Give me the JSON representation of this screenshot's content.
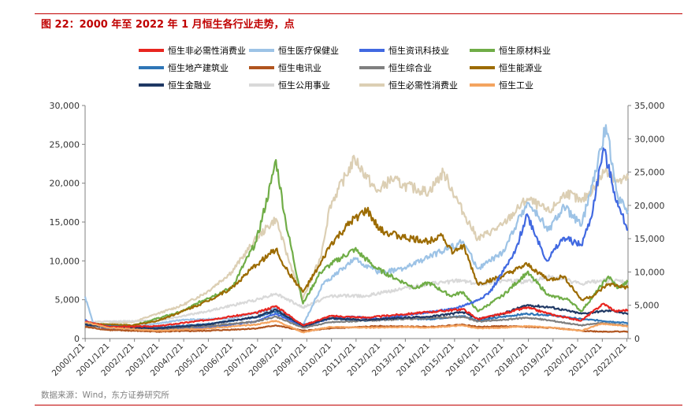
{
  "figure": {
    "title": "图 22：2000 年至 2022 年 1 月恒生各行业走势，点",
    "source": "数据来源：Wind，东方证券研究所",
    "accent_color": "#c00000"
  },
  "chart_data": {
    "type": "line",
    "title": "",
    "xlabel": "",
    "ylabel": "",
    "x_ticks": [
      "2000/1/21",
      "2001/1/21",
      "2002/1/21",
      "2003/1/21",
      "2004/1/21",
      "2005/1/21",
      "2006/1/21",
      "2007/1/21",
      "2008/1/21",
      "2009/1/21",
      "2010/1/21",
      "2011/1/21",
      "2012/1/21",
      "2013/1/21",
      "2014/1/21",
      "2015/1/21",
      "2016/1/21",
      "2017/1/21",
      "2018/1/21",
      "2019/1/21",
      "2020/1/21",
      "2021/1/21",
      "2022/1/21"
    ],
    "x_range": [
      2000.05,
      2022.1
    ],
    "y_left": {
      "range": [
        0,
        30000
      ],
      "ticks": [
        "0",
        "5,000",
        "10,000",
        "15,000",
        "20,000",
        "25,000",
        "30,000"
      ]
    },
    "y_right": {
      "range": [
        0,
        35000
      ],
      "ticks": [
        "0",
        "5,000",
        "10,000",
        "15,000",
        "20,000",
        "25,000",
        "30,000",
        "35,000"
      ]
    },
    "legend_position": "top",
    "grid": false,
    "series": [
      {
        "name": "恒生非必需性消费业",
        "color": "#e8251f",
        "axis": "left",
        "points": [
          [
            2000.05,
            2200
          ],
          [
            2001,
            1500
          ],
          [
            2003,
            1600
          ],
          [
            2005,
            2400
          ],
          [
            2007,
            3300
          ],
          [
            2007.8,
            4200
          ],
          [
            2008.9,
            1700
          ],
          [
            2010,
            2900
          ],
          [
            2011.5,
            2700
          ],
          [
            2012.5,
            3000
          ],
          [
            2014,
            3400
          ],
          [
            2015.4,
            3800
          ],
          [
            2016,
            2500
          ],
          [
            2017,
            3200
          ],
          [
            2018,
            4000
          ],
          [
            2019,
            3100
          ],
          [
            2020.2,
            2300
          ],
          [
            2021.1,
            4500
          ],
          [
            2021.6,
            3500
          ],
          [
            2022.1,
            3700
          ]
        ]
      },
      {
        "name": "恒生医疗保健业",
        "color": "#9dc3e6",
        "axis": "left",
        "points": [
          [
            2000.05,
            5400
          ],
          [
            2000.4,
            1800
          ],
          [
            2002,
            1500
          ],
          [
            2004,
            2400
          ],
          [
            2006,
            2600
          ],
          [
            2007.8,
            3900
          ],
          [
            2008.9,
            1700
          ],
          [
            2009.7,
            7000
          ],
          [
            2011,
            10200
          ],
          [
            2012,
            8500
          ],
          [
            2013,
            9000
          ],
          [
            2014,
            10500
          ],
          [
            2015.4,
            12500
          ],
          [
            2016,
            9000
          ],
          [
            2017,
            11000
          ],
          [
            2018,
            17500
          ],
          [
            2018.9,
            14000
          ],
          [
            2019.5,
            17000
          ],
          [
            2020.2,
            14500
          ],
          [
            2020.8,
            21500
          ],
          [
            2021.2,
            27500
          ],
          [
            2021.7,
            18000
          ],
          [
            2022.1,
            16500
          ]
        ]
      },
      {
        "name": "恒生资讯科技业",
        "color": "#4169e1",
        "axis": "left",
        "points": [
          [
            2000.05,
            2400
          ],
          [
            2000.3,
            1800
          ],
          [
            2001,
            1200
          ],
          [
            2003,
            1100
          ],
          [
            2005,
            1400
          ],
          [
            2007,
            2200
          ],
          [
            2007.8,
            3200
          ],
          [
            2008.9,
            1500
          ],
          [
            2010,
            2600
          ],
          [
            2011,
            2800
          ],
          [
            2012,
            2500
          ],
          [
            2013,
            3000
          ],
          [
            2014,
            3400
          ],
          [
            2015,
            3800
          ],
          [
            2015.9,
            4800
          ],
          [
            2016.5,
            6000
          ],
          [
            2017.5,
            11000
          ],
          [
            2018,
            16000
          ],
          [
            2018.8,
            10000
          ],
          [
            2019.5,
            13000
          ],
          [
            2020.2,
            12000
          ],
          [
            2020.6,
            15500
          ],
          [
            2021.1,
            24500
          ],
          [
            2021.7,
            17000
          ],
          [
            2022.1,
            14000
          ]
        ]
      },
      {
        "name": "恒生原材料业",
        "color": "#70ad47",
        "axis": "left",
        "points": [
          [
            2000.05,
            1900
          ],
          [
            2002,
            1700
          ],
          [
            2004,
            3500
          ],
          [
            2005,
            5200
          ],
          [
            2006,
            6500
          ],
          [
            2007,
            12500
          ],
          [
            2007.6,
            20000
          ],
          [
            2007.8,
            23000
          ],
          [
            2008.2,
            15000
          ],
          [
            2008.9,
            4500
          ],
          [
            2009.6,
            8500
          ],
          [
            2010,
            9500
          ],
          [
            2011,
            11500
          ],
          [
            2011.9,
            9000
          ],
          [
            2012.8,
            7500
          ],
          [
            2013.5,
            6500
          ],
          [
            2014,
            7200
          ],
          [
            2014.9,
            5500
          ],
          [
            2015.4,
            6000
          ],
          [
            2016,
            3500
          ],
          [
            2017,
            5500
          ],
          [
            2018,
            8500
          ],
          [
            2018.9,
            5500
          ],
          [
            2019.7,
            5000
          ],
          [
            2020.2,
            3500
          ],
          [
            2020.7,
            5500
          ],
          [
            2021.3,
            8000
          ],
          [
            2021.7,
            6500
          ],
          [
            2022.1,
            7300
          ]
        ]
      },
      {
        "name": "恒生地产建筑业",
        "color": "#2e75b6",
        "axis": "left",
        "points": [
          [
            2000.05,
            1900
          ],
          [
            2001,
            1600
          ],
          [
            2003,
            1400
          ],
          [
            2005,
            1900
          ],
          [
            2007,
            2700
          ],
          [
            2007.8,
            3500
          ],
          [
            2008.9,
            1800
          ],
          [
            2010,
            2600
          ],
          [
            2011.5,
            2300
          ],
          [
            2013,
            2600
          ],
          [
            2014,
            2500
          ],
          [
            2015.4,
            2900
          ],
          [
            2016,
            2300
          ],
          [
            2017,
            2800
          ],
          [
            2018,
            3200
          ],
          [
            2019,
            3000
          ],
          [
            2020.2,
            2500
          ],
          [
            2021,
            2300
          ],
          [
            2022.1,
            2000
          ]
        ]
      },
      {
        "name": "恒生电讯业",
        "color": "#b0541e",
        "axis": "left",
        "points": [
          [
            2000.05,
            1500
          ],
          [
            2001,
            1100
          ],
          [
            2003,
            900
          ],
          [
            2005,
            1000
          ],
          [
            2007,
            1300
          ],
          [
            2007.8,
            1700
          ],
          [
            2008.9,
            1000
          ],
          [
            2010,
            1300
          ],
          [
            2012,
            1600
          ],
          [
            2014,
            1500
          ],
          [
            2015.4,
            1800
          ],
          [
            2016,
            1500
          ],
          [
            2017,
            1600
          ],
          [
            2018,
            1500
          ],
          [
            2019,
            1400
          ],
          [
            2020.2,
            1000
          ],
          [
            2021,
            900
          ],
          [
            2022.1,
            900
          ]
        ]
      },
      {
        "name": "恒生综合业",
        "color": "#7f7f7f",
        "axis": "left",
        "points": [
          [
            2000.05,
            1700
          ],
          [
            2001,
            1400
          ],
          [
            2003,
            1200
          ],
          [
            2005,
            1600
          ],
          [
            2007,
            2200
          ],
          [
            2007.8,
            2800
          ],
          [
            2008.9,
            1400
          ],
          [
            2010,
            2100
          ],
          [
            2011.5,
            2300
          ],
          [
            2013,
            2500
          ],
          [
            2015.4,
            2800
          ],
          [
            2016,
            2200
          ],
          [
            2017,
            2400
          ],
          [
            2018,
            2700
          ],
          [
            2019,
            2300
          ],
          [
            2020.2,
            1700
          ],
          [
            2021,
            2000
          ],
          [
            2022.1,
            1700
          ]
        ]
      },
      {
        "name": "恒生能源业",
        "color": "#9c6b00",
        "axis": "left",
        "points": [
          [
            2000.05,
            2000
          ],
          [
            2001,
            1800
          ],
          [
            2002,
            1700
          ],
          [
            2003,
            2300
          ],
          [
            2004,
            3500
          ],
          [
            2005,
            4800
          ],
          [
            2006,
            6500
          ],
          [
            2007,
            9500
          ],
          [
            2007.8,
            11500
          ],
          [
            2008.2,
            9000
          ],
          [
            2008.9,
            6000
          ],
          [
            2009.6,
            9500
          ],
          [
            2010,
            12000
          ],
          [
            2011,
            15500
          ],
          [
            2011.5,
            16500
          ],
          [
            2012,
            14000
          ],
          [
            2013,
            13000
          ],
          [
            2014,
            12500
          ],
          [
            2014.5,
            13500
          ],
          [
            2015,
            11000
          ],
          [
            2015.4,
            12000
          ],
          [
            2016,
            7000
          ],
          [
            2017,
            8000
          ],
          [
            2018,
            9500
          ],
          [
            2018.9,
            7500
          ],
          [
            2019.5,
            8000
          ],
          [
            2020.2,
            5000
          ],
          [
            2020.7,
            5500
          ],
          [
            2021.3,
            7000
          ],
          [
            2022.1,
            6500
          ]
        ]
      },
      {
        "name": "恒生金融业",
        "color": "#1f3864",
        "axis": "left",
        "points": [
          [
            2000.05,
            1800
          ],
          [
            2001,
            1500
          ],
          [
            2003,
            1300
          ],
          [
            2005,
            1800
          ],
          [
            2007,
            2800
          ],
          [
            2007.8,
            3700
          ],
          [
            2008.9,
            1600
          ],
          [
            2010,
            2600
          ],
          [
            2011.5,
            2400
          ],
          [
            2013,
            2700
          ],
          [
            2014,
            2800
          ],
          [
            2015.4,
            3400
          ],
          [
            2016,
            2500
          ],
          [
            2017,
            3200
          ],
          [
            2018,
            4300
          ],
          [
            2019,
            4000
          ],
          [
            2020.2,
            3200
          ],
          [
            2021,
            3500
          ],
          [
            2021.5,
            3600
          ],
          [
            2022.1,
            3100
          ]
        ]
      },
      {
        "name": "恒生公用事业",
        "color": "#d9d9d9",
        "axis": "left",
        "points": [
          [
            2000.05,
            2100
          ],
          [
            2001,
            2200
          ],
          [
            2003,
            2300
          ],
          [
            2005,
            3500
          ],
          [
            2007,
            5000
          ],
          [
            2007.8,
            5800
          ],
          [
            2008.9,
            4000
          ],
          [
            2010,
            5500
          ],
          [
            2011.5,
            5500
          ],
          [
            2013,
            6500
          ],
          [
            2014,
            7000
          ],
          [
            2015.4,
            7500
          ],
          [
            2016,
            7000
          ],
          [
            2017,
            7500
          ],
          [
            2018,
            7300
          ],
          [
            2019,
            8000
          ],
          [
            2020.2,
            7000
          ],
          [
            2021,
            7500
          ],
          [
            2022.1,
            7300
          ]
        ]
      },
      {
        "name": "恒生必需性消费业",
        "color": "#dccfb4",
        "axis": "right",
        "points": [
          [
            2000.05,
            2000
          ],
          [
            2002,
            2500
          ],
          [
            2004,
            5000
          ],
          [
            2005,
            7000
          ],
          [
            2006,
            10000
          ],
          [
            2007,
            15000
          ],
          [
            2007.8,
            18000
          ],
          [
            2008.3,
            12000
          ],
          [
            2008.9,
            6000
          ],
          [
            2009.6,
            12000
          ],
          [
            2010,
            20000
          ],
          [
            2011,
            27000
          ],
          [
            2011.9,
            22000
          ],
          [
            2012.5,
            24000
          ],
          [
            2013,
            23000
          ],
          [
            2014,
            22000
          ],
          [
            2014.6,
            25000
          ],
          [
            2015.4,
            19000
          ],
          [
            2016,
            15000
          ],
          [
            2017,
            17000
          ],
          [
            2018,
            21000
          ],
          [
            2018.9,
            19000
          ],
          [
            2019.6,
            22000
          ],
          [
            2020.2,
            20500
          ],
          [
            2020.8,
            23000
          ],
          [
            2021.2,
            25500
          ],
          [
            2021.7,
            23500
          ],
          [
            2022.1,
            24000
          ]
        ]
      },
      {
        "name": "恒生工业",
        "color": "#f4a460",
        "axis": "left",
        "points": [
          [
            2000.05,
            2100
          ],
          [
            2001,
            1400
          ],
          [
            2003,
            1000
          ],
          [
            2005,
            1300
          ],
          [
            2007,
            1800
          ],
          [
            2007.8,
            2300
          ],
          [
            2008.9,
            800
          ],
          [
            2010,
            1500
          ],
          [
            2011.5,
            1400
          ],
          [
            2013,
            1500
          ],
          [
            2014,
            1400
          ],
          [
            2015.4,
            1700
          ],
          [
            2016,
            1300
          ],
          [
            2017,
            1400
          ],
          [
            2018,
            1600
          ],
          [
            2019,
            1400
          ],
          [
            2020.2,
            1000
          ],
          [
            2021,
            1900
          ],
          [
            2022.1,
            1600
          ]
        ]
      }
    ]
  }
}
